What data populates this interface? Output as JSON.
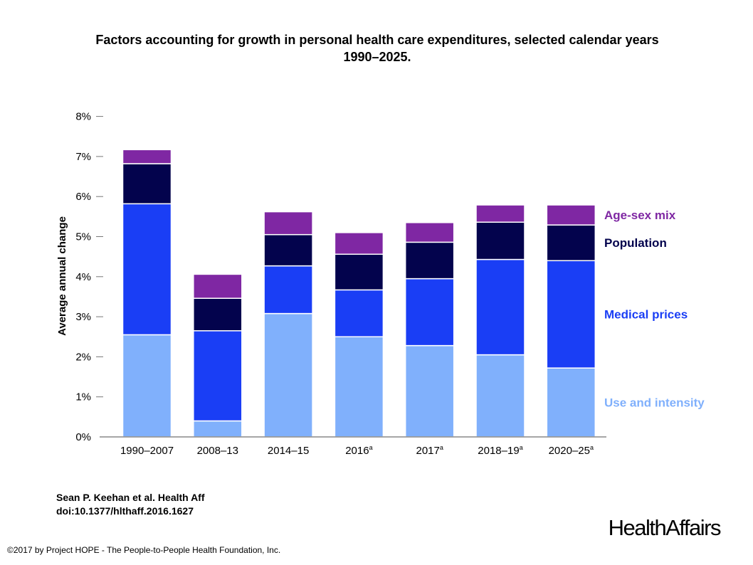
{
  "page": {
    "title_line1": "Factors accounting for growth in personal health care expenditures, selected calendar years",
    "title_line2": "1990–2025.",
    "citation_line1": "Sean P. Keehan et al. Health Aff",
    "citation_line2": "doi:10.1377/hlthaff.2016.1627",
    "copyright": "©2017 by Project HOPE - The People-to-People Health Foundation, Inc.",
    "logo": "HealthAffairs"
  },
  "chart_data": {
    "type": "bar",
    "stacked": true,
    "title": "Factors accounting for growth in personal health care expenditures, selected calendar years 1990–2025.",
    "ylabel": "Average annual change",
    "xlabel": "",
    "ylim": [
      0,
      8
    ],
    "yticks": [
      0,
      1,
      2,
      3,
      4,
      5,
      6,
      7,
      8
    ],
    "ytick_labels": [
      "0%",
      "1%",
      "2%",
      "3%",
      "4%",
      "5%",
      "6%",
      "7%",
      "8%"
    ],
    "categories": [
      "1990–2007",
      "2008–13",
      "2014–15",
      "2016",
      "2017",
      "2018–19",
      "2020–25"
    ],
    "category_superscripts": [
      "",
      "",
      "",
      "a",
      "a",
      "a",
      "a"
    ],
    "legend_position": "right",
    "series": [
      {
        "name": "Use and intensity",
        "color": "#80b0fc",
        "values": [
          2.55,
          0.4,
          3.08,
          2.5,
          2.28,
          2.05,
          1.72
        ]
      },
      {
        "name": "Medical prices",
        "color": "#1a3ef5",
        "values": [
          3.27,
          2.25,
          1.19,
          1.17,
          1.67,
          2.38,
          2.68
        ]
      },
      {
        "name": "Population",
        "color": "#03034d",
        "values": [
          1.0,
          0.81,
          0.78,
          0.89,
          0.91,
          0.93,
          0.89
        ]
      },
      {
        "name": "Age-sex mix",
        "color": "#7f27a3",
        "values": [
          0.35,
          0.6,
          0.57,
          0.54,
          0.49,
          0.43,
          0.5
        ]
      }
    ]
  }
}
